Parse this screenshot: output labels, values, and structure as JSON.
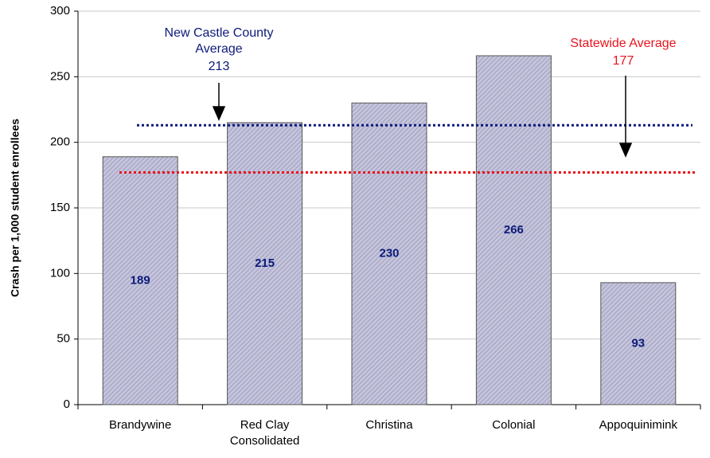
{
  "chart_data": {
    "type": "bar",
    "y_label": "Crash per 1,000 student enrollees",
    "categories": [
      "Brandywine",
      "Red Clay Consolidated",
      "Christina",
      "Colonial",
      "Appoquinimink"
    ],
    "values": [
      189,
      215,
      230,
      266,
      93
    ],
    "color": "#b4b4d4",
    "value_label_color": "#0c1a7a",
    "ylim": [
      0,
      300
    ],
    "yticks": [
      0,
      50,
      100,
      150,
      200,
      250,
      300
    ],
    "grid": true,
    "reference_lines": [
      {
        "label": "New Castle County Average",
        "value": 213,
        "color": "#0c1a7a"
      },
      {
        "label": "Statewide Average",
        "value": 177,
        "color": "#e8141c"
      }
    ]
  }
}
